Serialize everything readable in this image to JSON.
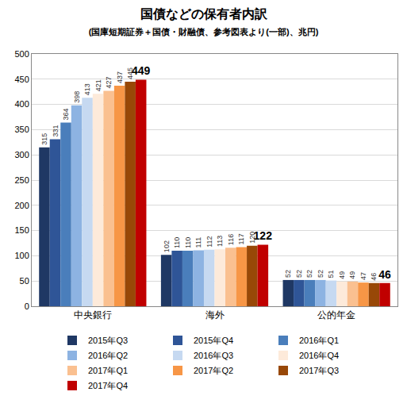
{
  "chart_data": {
    "type": "bar",
    "title": "国債などの保有者内訳",
    "subtitle": "(国庫短期証券＋国債・財融債、参考図表より(一部)、兆円)",
    "categories": [
      "中央銀行",
      "海外",
      "公的年金"
    ],
    "series": [
      {
        "name": "2015年Q3",
        "color": "#1f3864",
        "values": [
          315,
          102,
          52
        ]
      },
      {
        "name": "2015年Q4",
        "color": "#2f5597",
        "values": [
          331,
          110,
          52
        ]
      },
      {
        "name": "2016年Q1",
        "color": "#4a7ebb",
        "values": [
          364,
          110,
          52
        ]
      },
      {
        "name": "2016年Q2",
        "color": "#8db3e2",
        "values": [
          398,
          111,
          52
        ]
      },
      {
        "name": "2016年Q3",
        "color": "#c6d9f1",
        "values": [
          413,
          112,
          51
        ]
      },
      {
        "name": "2016年Q4",
        "color": "#fdeada",
        "values": [
          421,
          113,
          49
        ]
      },
      {
        "name": "2017年Q1",
        "color": "#fac090",
        "values": [
          427,
          116,
          49
        ]
      },
      {
        "name": "2017年Q2",
        "color": "#f79646",
        "values": [
          437,
          117,
          47
        ]
      },
      {
        "name": "2017年Q3",
        "color": "#984807",
        "values": [
          445,
          120,
          46
        ]
      },
      {
        "name": "2017年Q4",
        "color": "#c00000",
        "values": [
          449,
          122,
          46
        ]
      }
    ],
    "ylim": [
      0,
      500
    ],
    "yticks": [
      0,
      50,
      100,
      150,
      200,
      250,
      300,
      350,
      400,
      450,
      500
    ],
    "grid": true,
    "data_labels": true,
    "legend": "bottom"
  }
}
